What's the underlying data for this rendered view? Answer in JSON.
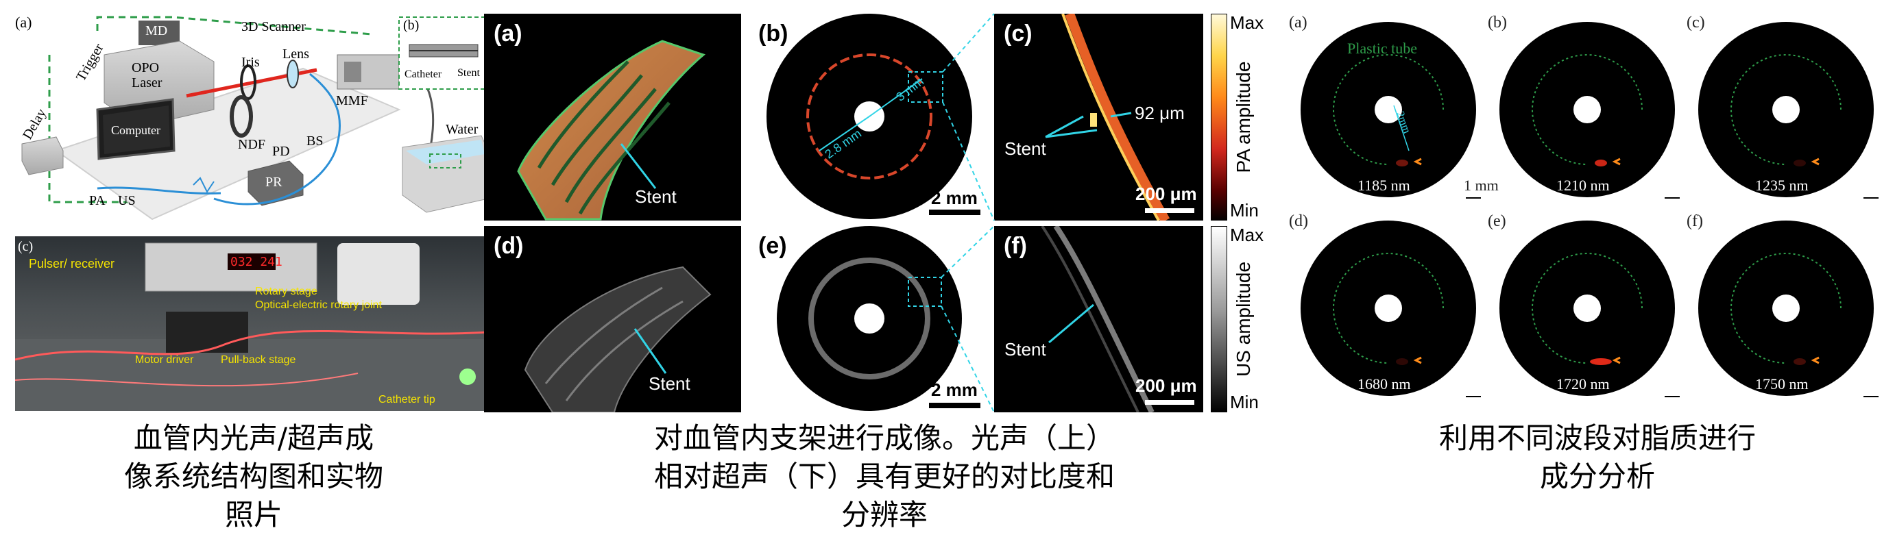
{
  "left": {
    "diagram": {
      "panel_a": "(a)",
      "panel_b": "(b)",
      "md": "MD",
      "trigger": "Trigger",
      "scanner": "3D Scanner",
      "opo_laser": "OPO\nLaser",
      "iris": "Iris",
      "lens": "Lens",
      "mmf": "MMF",
      "computer": "Computer",
      "ndf": "NDF",
      "pd": "PD",
      "bs": "BS",
      "delay": "Delay",
      "water": "Water",
      "pa": "PA",
      "us": "US",
      "pr": "PR",
      "catheter": "Catheter",
      "stent": "Stent"
    },
    "photo": {
      "panel_c": "(c)",
      "pulser": "Pulser/ receiver",
      "rotary": "Rotary stage",
      "joint": "Optical-electric rotary joint",
      "motor": "Motor driver",
      "pullback": "Pull-back stage",
      "catheter_tip": "Catheter tip",
      "display": "032 241"
    },
    "caption_lines": [
      "血管内光声/超声成",
      "像系统结构图和实物",
      "照片"
    ]
  },
  "middle": {
    "a": {
      "label": "(a)",
      "stent": "Stent"
    },
    "b": {
      "label": "(b)",
      "dim1": "3 mm",
      "dim2": "2.8 mm",
      "scale": "2 mm"
    },
    "c": {
      "label": "(c)",
      "stent": "Stent",
      "measure": "92 μm",
      "scale": "200 μm"
    },
    "d": {
      "label": "(d)",
      "stent": "Stent"
    },
    "e": {
      "label": "(e)",
      "scale": "2 mm"
    },
    "f": {
      "label": "(f)",
      "stent": "Stent",
      "scale": "200 μm"
    },
    "cb_pa": {
      "max": "Max",
      "min": "Min",
      "title": "PA amplitude"
    },
    "cb_us": {
      "max": "Max",
      "min": "Min",
      "title": "US amplitude"
    },
    "caption_lines": [
      "对血管内支架进行成像。光声（上）",
      "相对超声（下）具有更好的对比度和",
      "分辨率"
    ]
  },
  "right": {
    "plastic_tube": "Plastic tube",
    "dim": "2mm",
    "scale": "1 mm",
    "panels": [
      {
        "label": "(a)",
        "wl": "1185 nm"
      },
      {
        "label": "(b)",
        "wl": "1210 nm"
      },
      {
        "label": "(c)",
        "wl": "1235 nm"
      },
      {
        "label": "(d)",
        "wl": "1680 nm"
      },
      {
        "label": "(e)",
        "wl": "1720 nm"
      },
      {
        "label": "(f)",
        "wl": "1750 nm"
      }
    ],
    "caption_lines": [
      "利用不同波段对脂质进行",
      "成分分析"
    ]
  },
  "colors": {
    "accent_cyan": "#31d4e6",
    "dash_green": "#2e9d4a",
    "laser_red": "#e0261e",
    "fiber_blue": "#2b8fd6"
  }
}
